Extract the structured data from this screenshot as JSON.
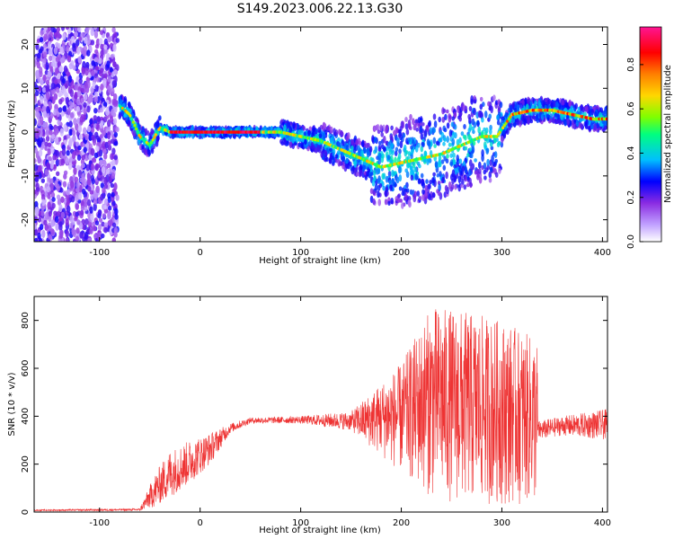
{
  "title": "S149.2023.006.22.13.G30",
  "colors": {
    "snr_line": "#ee3333",
    "colormap": [
      "#ffffff",
      "#c0a0ff",
      "#8a2be2",
      "#0000ff",
      "#00bfff",
      "#00ff7f",
      "#7fff00",
      "#ffd700",
      "#ff7f00",
      "#ff0000",
      "#ff1493"
    ]
  },
  "chart_data": [
    {
      "type": "heatmap",
      "name": "spectrogram",
      "xlabel": "Height of straight line (km)",
      "ylabel": "Frequency (Hz)",
      "xlim": [
        -165,
        405
      ],
      "ylim": [
        -25,
        24
      ],
      "xticks": [
        -100,
        0,
        100,
        200,
        300,
        400
      ],
      "yticks": [
        -20,
        -10,
        0,
        10,
        20
      ],
      "grid": false,
      "ridge": {
        "x": [
          -80,
          -70,
          -60,
          -50,
          -40,
          -30,
          -20,
          0,
          20,
          40,
          60,
          80,
          100,
          120,
          140,
          160,
          180,
          200,
          220,
          240,
          260,
          280,
          295,
          310,
          330,
          350,
          370,
          390,
          405
        ],
        "y": [
          6,
          4,
          -1,
          -3,
          1,
          0,
          0,
          0,
          0,
          0,
          0,
          0,
          -1,
          -2,
          -4,
          -6,
          -8,
          -7,
          -6,
          -5,
          -3,
          -1,
          -1,
          4,
          5,
          5,
          4,
          3,
          3
        ]
      },
      "colorbar": {
        "label": "Normalized spectral amplitude",
        "range": [
          0.0,
          0.97
        ],
        "ticks": [
          "0.0",
          "0.2",
          "0.4",
          "0.6",
          "0.8"
        ]
      }
    },
    {
      "type": "line",
      "name": "snr",
      "xlabel": "Height of straight line (km)",
      "ylabel": "SNR (10 * v/v)",
      "xlim": [
        -165,
        405
      ],
      "ylim": [
        0,
        900
      ],
      "xticks": [
        -100,
        0,
        100,
        200,
        300,
        400
      ],
      "yticks": [
        0,
        200,
        400,
        600,
        800
      ],
      "grid": false,
      "envelope": {
        "x": [
          -165,
          -60,
          -45,
          -30,
          -10,
          10,
          30,
          50,
          100,
          150,
          200,
          230,
          260,
          300,
          335,
          336,
          360,
          405
        ],
        "upper": [
          10,
          15,
          160,
          260,
          300,
          330,
          370,
          395,
          400,
          420,
          620,
          860,
          840,
          800,
          720,
          380,
          400,
          430
        ],
        "lower": [
          5,
          5,
          20,
          60,
          120,
          200,
          330,
          370,
          370,
          340,
          160,
          60,
          30,
          30,
          30,
          300,
          320,
          300
        ]
      }
    }
  ]
}
